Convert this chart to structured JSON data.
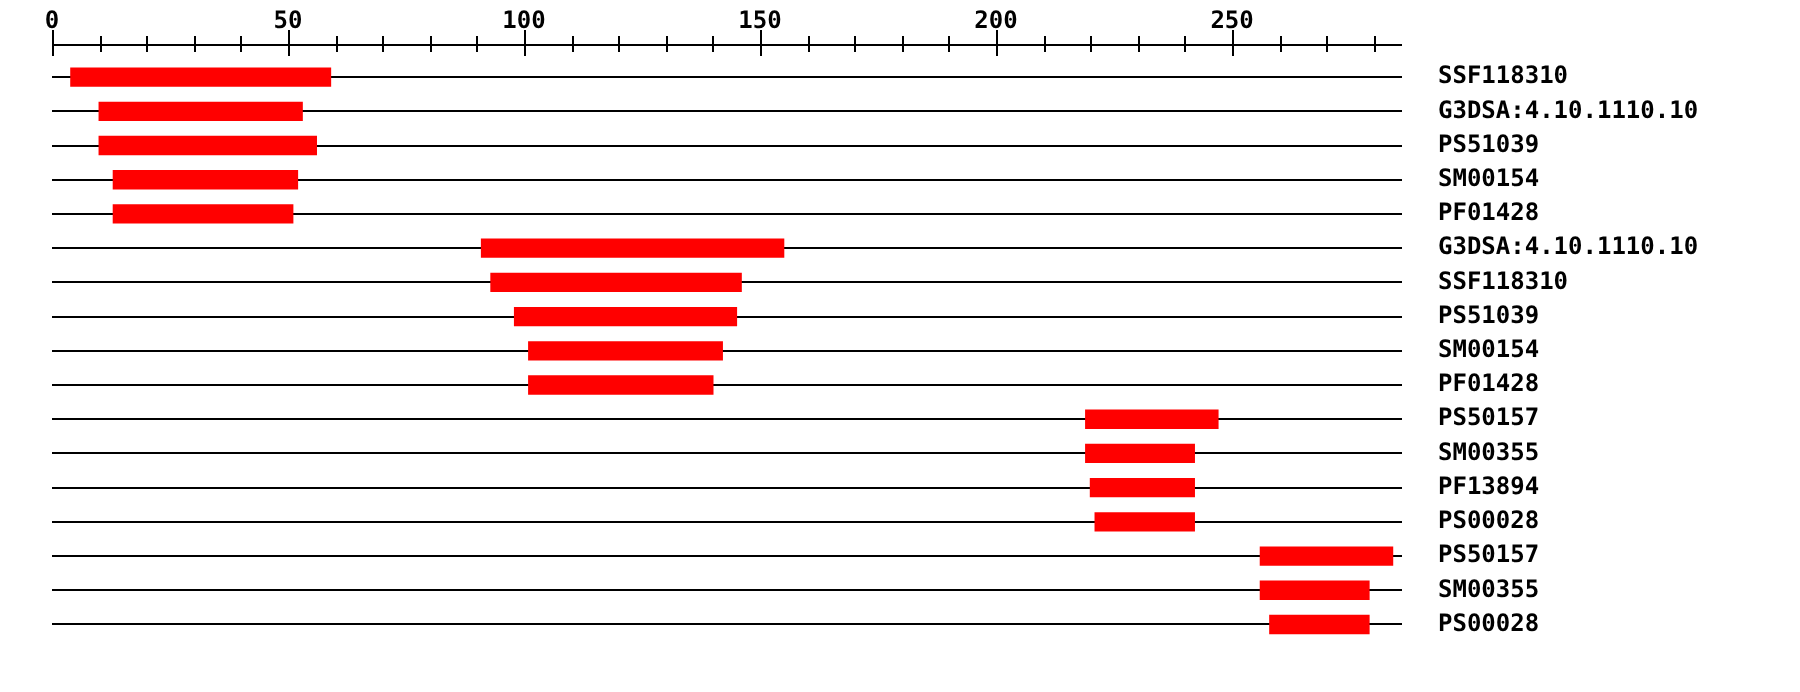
{
  "chart_data": {
    "type": "bar",
    "orientation": "horizontal",
    "grid": "y",
    "color": "#ff0000",
    "categories": [
      "SSF118310",
      "G3DSA:4.10.1110.10",
      "PS51039",
      "SM00154",
      "PF01428",
      "G3DSA:4.10.1110.10",
      "SSF118310",
      "PS51039",
      "SM00154",
      "PF01428",
      "PS50157",
      "SM00355",
      "PF13894",
      "PS00028",
      "PS50157",
      "SM00355",
      "PS00028"
    ],
    "base": [
      4,
      10,
      10,
      13,
      13,
      91,
      93,
      98,
      101,
      101,
      219,
      219,
      220,
      221,
      256,
      256,
      258
    ],
    "values": [
      55,
      43,
      46,
      39,
      38,
      64,
      53,
      47,
      41,
      39,
      28,
      23,
      22,
      21,
      28,
      23,
      21
    ],
    "xlim": [
      0,
      286
    ],
    "xticks": [
      0,
      {
        "value": 10,
        "label": null
      },
      {
        "value": 20,
        "label": null
      },
      {
        "value": 30,
        "label": null
      },
      {
        "value": 40,
        "label": null
      },
      50,
      {
        "value": 60,
        "label": null
      },
      {
        "value": 70,
        "label": null
      },
      {
        "value": 80,
        "label": null
      },
      {
        "value": 90,
        "label": null
      },
      100,
      {
        "value": 110,
        "label": null
      },
      {
        "value": 120,
        "label": null
      },
      {
        "value": 130,
        "label": null
      },
      {
        "value": 140,
        "label": null
      },
      150,
      {
        "value": 160,
        "label": null
      },
      {
        "value": 170,
        "label": null
      },
      {
        "value": 180,
        "label": null
      },
      {
        "value": 190,
        "label": null
      },
      200,
      {
        "value": 210,
        "label": null
      },
      {
        "value": 220,
        "label": null
      },
      {
        "value": 230,
        "label": null
      },
      {
        "value": 240,
        "label": null
      },
      250,
      {
        "value": 260,
        "label": null
      },
      {
        "value": 270,
        "label": null
      },
      {
        "value": 280,
        "label": null
      }
    ]
  }
}
